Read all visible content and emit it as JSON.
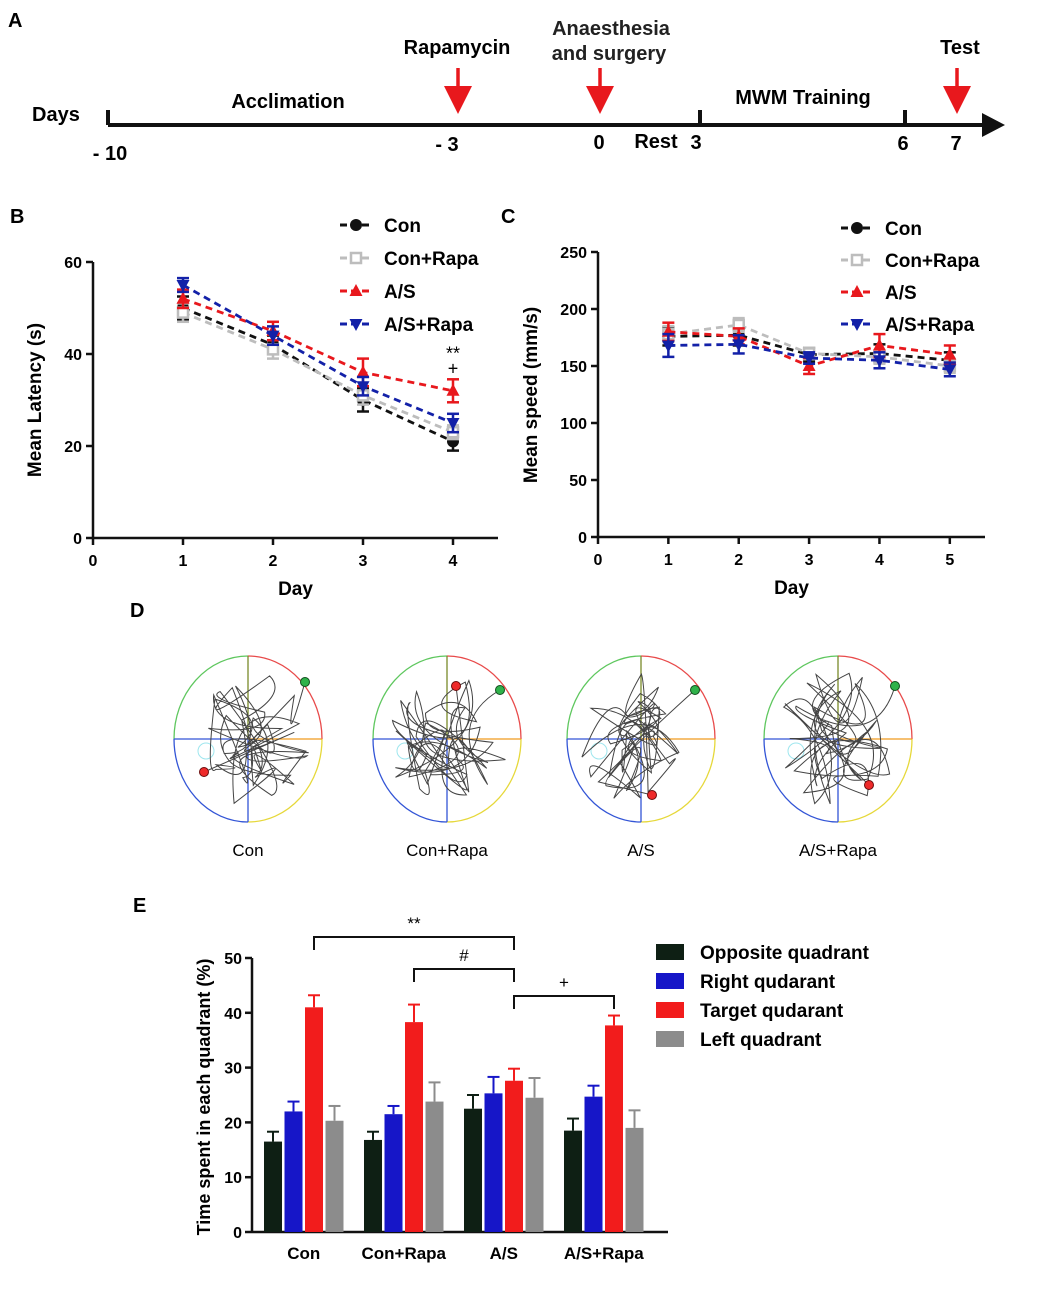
{
  "panel_labels": {
    "a": "A",
    "b": "B",
    "c": "C",
    "d": "D",
    "e": "E"
  },
  "timeline": {
    "days_label": "Days",
    "phases": [
      "Acclimation",
      "MWM Training"
    ],
    "event_rapamycin": "Rapamycin",
    "event_surgery_line1": "Anaesthesia",
    "event_surgery_line2": "and surgery",
    "event_test": "Test",
    "rest_label": "Rest",
    "ticks": [
      {
        "label": "- 10",
        "day": -10
      },
      {
        "label": "- 3",
        "day": -3
      },
      {
        "label": "0",
        "day": 0
      },
      {
        "label": "3",
        "day": 3
      },
      {
        "label": "6",
        "day": 6
      },
      {
        "label": "7",
        "day": 7
      }
    ],
    "arrow_color": "#e8181d"
  },
  "series_colors": {
    "Con": "#111111",
    "Con+Rapa": "#bdbdbd",
    "A/S": "#e8181d",
    "A/S+Rapa": "#1321a8"
  },
  "chart_data": [
    {
      "type": "line",
      "panel": "B",
      "title": "",
      "xlabel": "Day",
      "ylabel": "Mean Latency (s)",
      "xlim": [
        0,
        4.5
      ],
      "ylim": [
        0,
        60
      ],
      "xticks": [
        0,
        1,
        2,
        3,
        4
      ],
      "yticks": [
        0,
        20,
        40,
        60
      ],
      "x": [
        1,
        2,
        3,
        4
      ],
      "series": [
        {
          "name": "Con",
          "marker": "circle",
          "values": [
            50,
            42,
            30,
            21
          ],
          "errors": [
            2.5,
            2.0,
            2.5,
            2.0
          ]
        },
        {
          "name": "Con+Rapa",
          "marker": "square-open",
          "values": [
            49,
            41,
            31,
            23
          ],
          "errors": [
            2.0,
            2.0,
            2.0,
            1.5
          ]
        },
        {
          "name": "A/S",
          "marker": "triangle-up",
          "values": [
            52,
            45,
            36,
            32
          ],
          "errors": [
            2.0,
            2.0,
            3.0,
            2.5
          ]
        },
        {
          "name": "A/S+Rapa",
          "marker": "triangle-down",
          "values": [
            55,
            44,
            33,
            25
          ],
          "errors": [
            1.5,
            2.0,
            2.0,
            2.0
          ]
        }
      ],
      "annotations": [
        {
          "text": "**",
          "x": 4
        },
        {
          "text": "+",
          "x": 4
        }
      ]
    },
    {
      "type": "line",
      "panel": "C",
      "title": "",
      "xlabel": "Day",
      "ylabel": "Mean speed (mm/s)",
      "xlim": [
        0,
        5.5
      ],
      "ylim": [
        0,
        250
      ],
      "xticks": [
        0,
        1,
        2,
        3,
        4,
        5
      ],
      "yticks": [
        0,
        50,
        100,
        150,
        200,
        250
      ],
      "x": [
        1,
        2,
        3,
        4,
        5
      ],
      "series": [
        {
          "name": "Con",
          "marker": "circle",
          "values": [
            176,
            177,
            160,
            161,
            155
          ],
          "errors": [
            8,
            9,
            6,
            8,
            7
          ]
        },
        {
          "name": "Con+Rapa",
          "marker": "square-open",
          "values": [
            178,
            186,
            161,
            158,
            150
          ],
          "errors": [
            7,
            6,
            5,
            6,
            6
          ]
        },
        {
          "name": "A/S",
          "marker": "triangle-up",
          "values": [
            180,
            176,
            150,
            168,
            160
          ],
          "errors": [
            8,
            7,
            7,
            10,
            8
          ]
        },
        {
          "name": "A/S+Rapa",
          "marker": "triangle-down",
          "values": [
            168,
            169,
            157,
            155,
            147
          ],
          "errors": [
            10,
            8,
            5,
            7,
            6
          ]
        }
      ]
    },
    {
      "type": "bar",
      "panel": "E",
      "title": "",
      "xlabel": "",
      "ylabel": "Time spent in each quadrant (%)",
      "ylim": [
        0,
        50
      ],
      "yticks": [
        0,
        10,
        20,
        30,
        40,
        50
      ],
      "categories": [
        "Con",
        "Con+Rapa",
        "A/S",
        "A/S+Rapa"
      ],
      "series": [
        {
          "name": "Opposite quadrant",
          "color": "#0e1f14",
          "values": [
            16.5,
            16.8,
            22.5,
            18.5
          ],
          "errors": [
            1.8,
            1.5,
            2.5,
            2.2
          ]
        },
        {
          "name": "Right qudarant",
          "color": "#1616c8",
          "values": [
            22,
            21.5,
            25.3,
            24.7
          ],
          "errors": [
            1.8,
            1.5,
            3.0,
            2.0
          ]
        },
        {
          "name": "Target qudarant",
          "color": "#f21c1c",
          "values": [
            41,
            38.3,
            27.6,
            37.7
          ],
          "errors": [
            2.2,
            3.2,
            2.2,
            1.8
          ]
        },
        {
          "name": "Left quadrant",
          "color": "#8c8c8c",
          "values": [
            20.3,
            23.8,
            24.5,
            19
          ],
          "errors": [
            2.7,
            3.5,
            3.6,
            3.2
          ]
        }
      ],
      "significance": [
        {
          "text": "**",
          "from": "Con",
          "to": "A/S"
        },
        {
          "text": "#",
          "from": "Con+Rapa",
          "to": "A/S"
        },
        {
          "text": "+",
          "from": "A/S",
          "to": "A/S+Rapa"
        }
      ]
    }
  ],
  "swim_paths": {
    "groups": [
      "Con",
      "Con+Rapa",
      "A/S",
      "A/S+Rapa"
    ],
    "quadrant_colors": [
      "#e84a4a",
      "#5ec75e",
      "#3355d6",
      "#e6d83a"
    ],
    "axis_colors": [
      "#7a8a2a",
      "#f09a1e"
    ]
  }
}
